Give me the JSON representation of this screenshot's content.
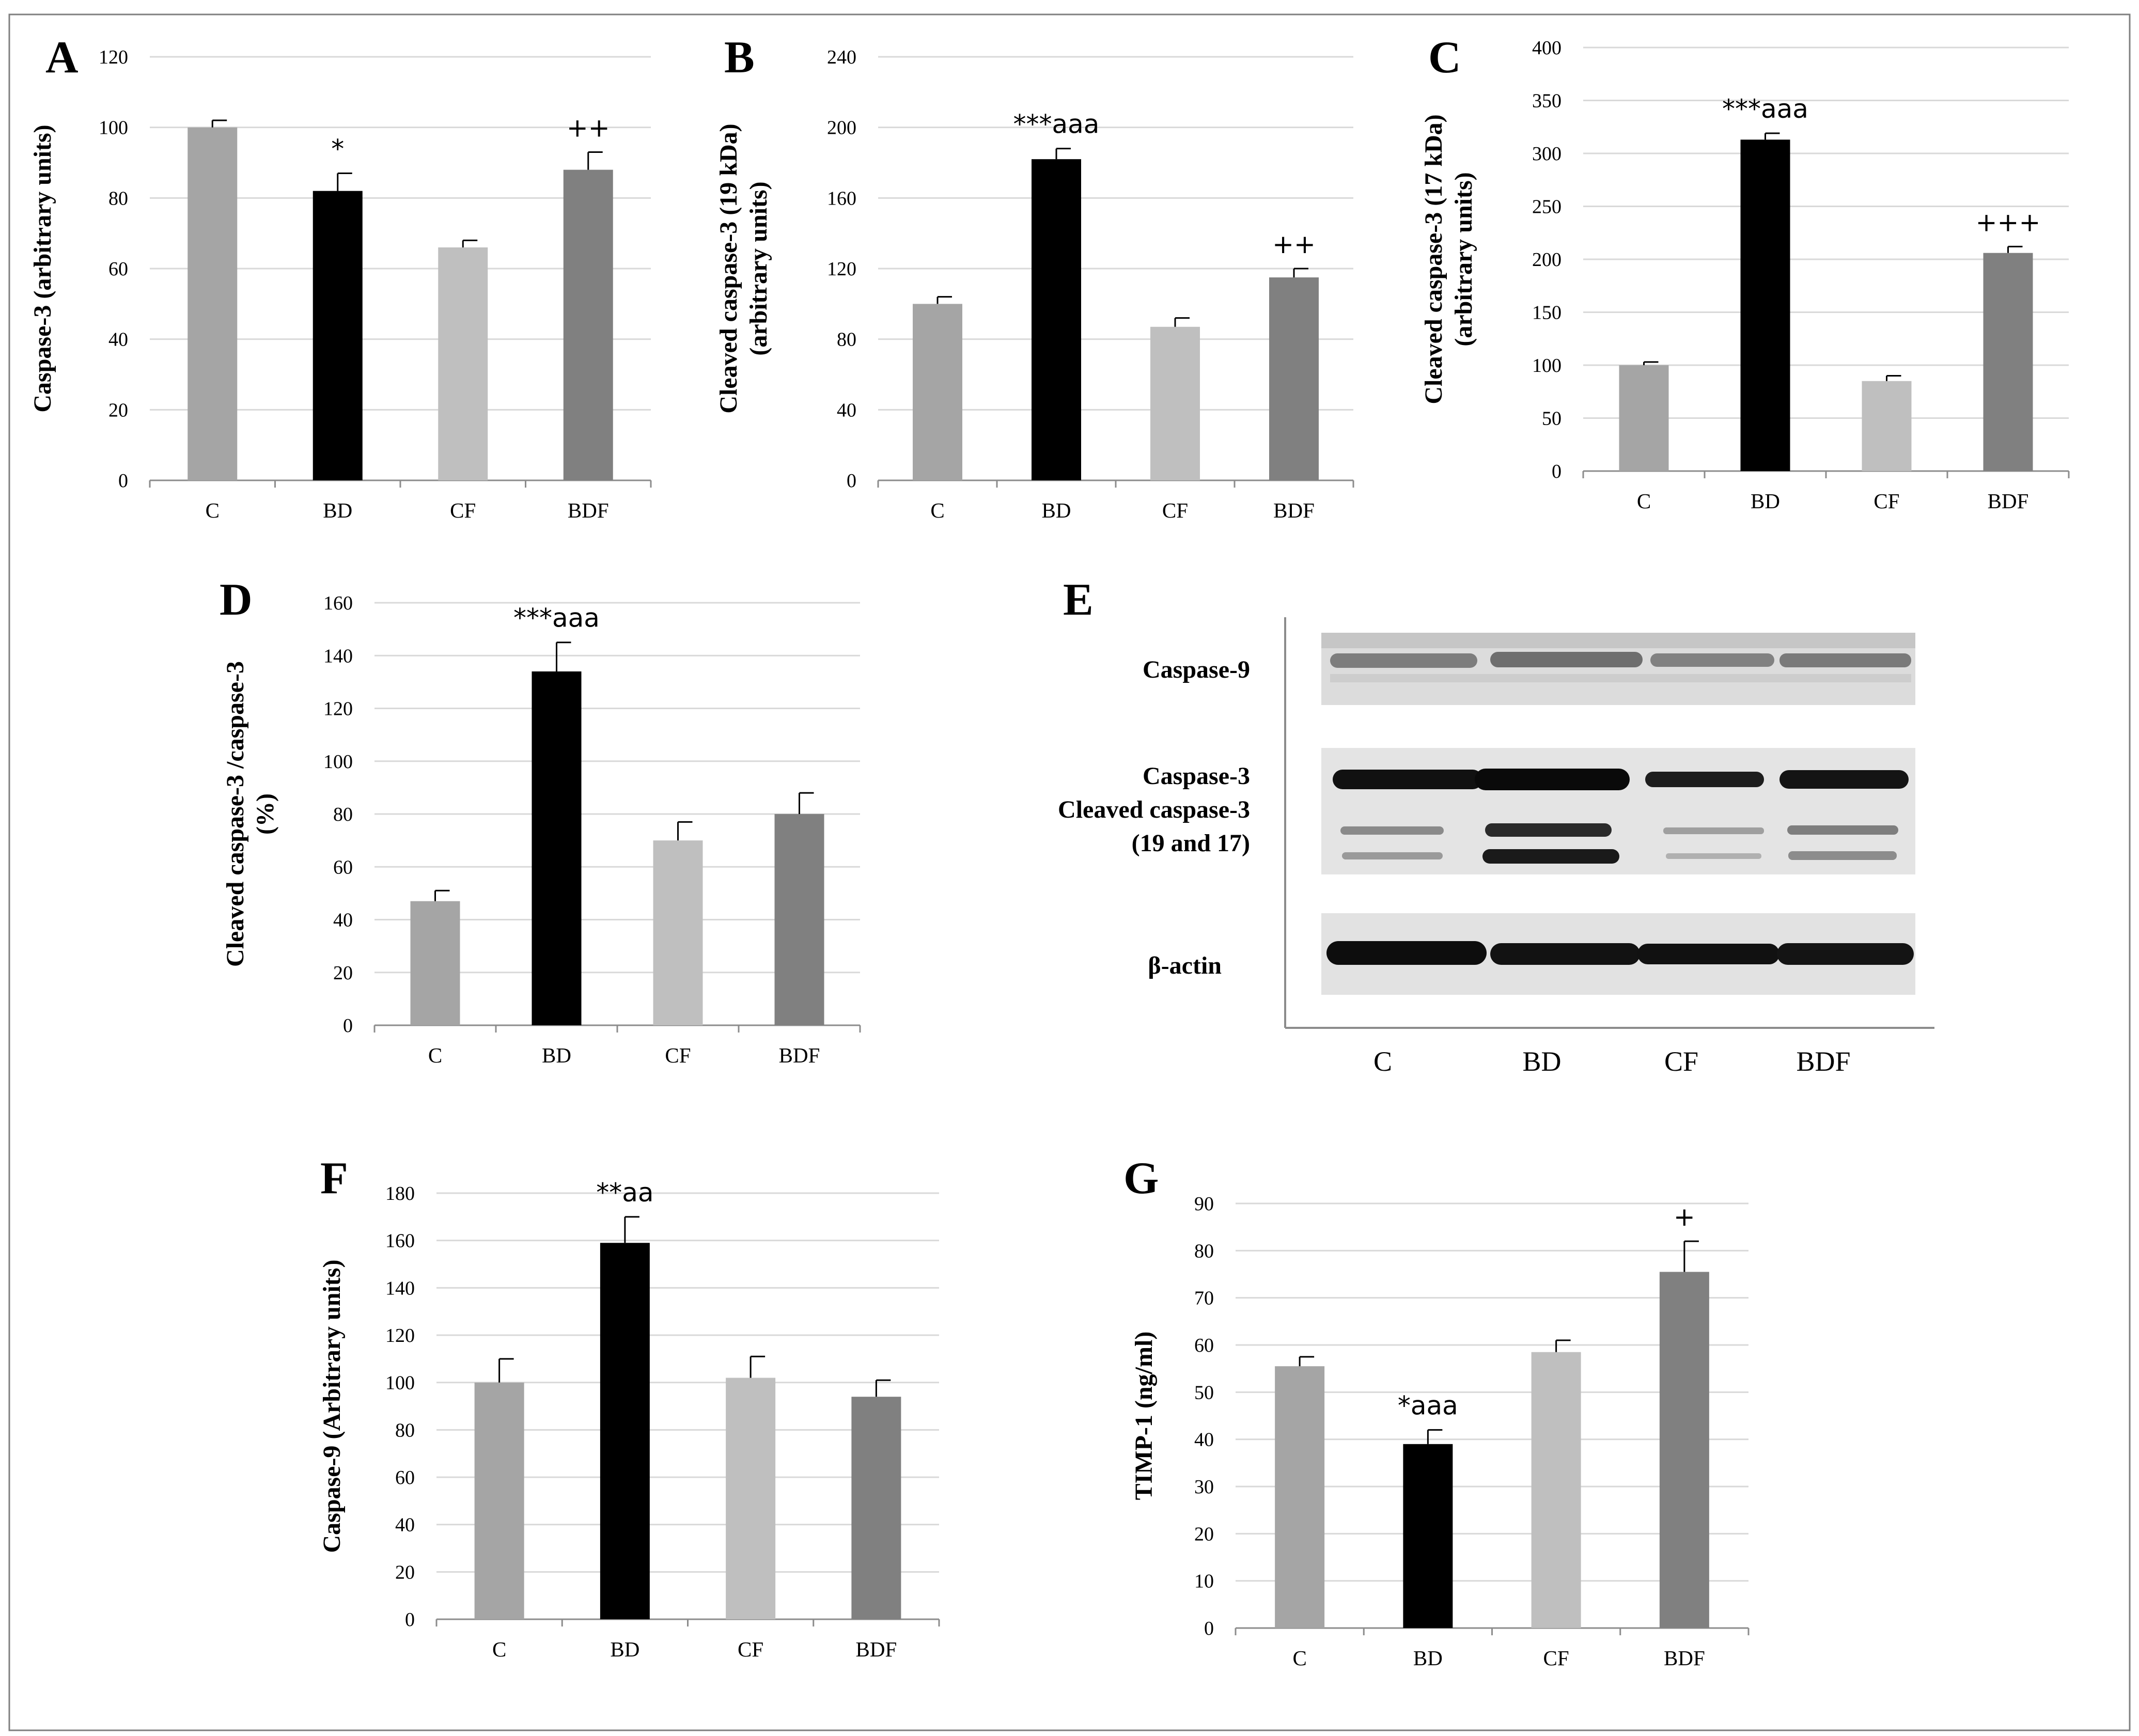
{
  "categories": [
    "C",
    "BD",
    "CF",
    "BDF"
  ],
  "colors": {
    "C": "#a5a5a5",
    "BD": "#000000",
    "CF": "#bfbfbf",
    "BDF": "#808080",
    "grid": "#d9d9d9",
    "axis": "#8c8c8c",
    "border": "#7f7f7f"
  },
  "chart_data": [
    {
      "id": "A",
      "type": "bar",
      "panel_label": "A",
      "ylabel_lines": [
        "Caspase-3 (arbitrary  units)"
      ],
      "ylim": [
        0,
        120
      ],
      "yticks": [
        0,
        20,
        40,
        60,
        80,
        100,
        120
      ],
      "categories": [
        "C",
        "BD",
        "CF",
        "BDF"
      ],
      "values": [
        100,
        82,
        66,
        88
      ],
      "errors": [
        2,
        5,
        2,
        5
      ],
      "annotations": [
        "",
        "*",
        "",
        "++"
      ]
    },
    {
      "id": "B",
      "type": "bar",
      "panel_label": "B",
      "ylabel_lines": [
        "Cleaved caspase-3 (19 kDa)",
        "(arbitrary  units)"
      ],
      "ylim": [
        0,
        240
      ],
      "yticks": [
        0,
        40,
        80,
        120,
        160,
        200,
        240
      ],
      "categories": [
        "C",
        "BD",
        "CF",
        "BDF"
      ],
      "values": [
        100,
        182,
        87,
        115
      ],
      "errors": [
        4,
        6,
        5,
        5
      ],
      "annotations": [
        "",
        "***aaa",
        "",
        "++"
      ]
    },
    {
      "id": "C",
      "type": "bar",
      "panel_label": "C",
      "ylabel_lines": [
        "Cleaved caspase-3 (17 kDa)",
        "(arbitrary  units)"
      ],
      "ylim": [
        0,
        400
      ],
      "yticks": [
        0,
        50,
        100,
        150,
        200,
        250,
        300,
        350,
        400
      ],
      "categories": [
        "C",
        "BD",
        "CF",
        "BDF"
      ],
      "values": [
        100,
        313,
        85,
        206
      ],
      "errors": [
        3,
        6,
        5,
        6
      ],
      "annotations": [
        "",
        "***aaa",
        "",
        "+++"
      ]
    },
    {
      "id": "D",
      "type": "bar",
      "panel_label": "D",
      "ylabel_lines": [
        "Cleaved caspase-3 /caspase-3",
        "(%)"
      ],
      "ylim": [
        0,
        160
      ],
      "yticks": [
        0,
        20,
        40,
        60,
        80,
        100,
        120,
        140,
        160
      ],
      "categories": [
        "C",
        "BD",
        "CF",
        "BDF"
      ],
      "values": [
        47,
        134,
        70,
        80
      ],
      "errors": [
        4,
        11,
        7,
        8
      ],
      "annotations": [
        "",
        "***aaa",
        "",
        ""
      ]
    },
    {
      "id": "F",
      "type": "bar",
      "panel_label": "F",
      "ylabel_lines": [
        "Caspase-9 (Arbitrary  units)"
      ],
      "ylim": [
        0,
        180
      ],
      "yticks": [
        0,
        20,
        40,
        60,
        80,
        100,
        120,
        140,
        160,
        180
      ],
      "categories": [
        "C",
        "BD",
        "CF",
        "BDF"
      ],
      "values": [
        100,
        159,
        102,
        94
      ],
      "errors": [
        10,
        11,
        9,
        7
      ],
      "annotations": [
        "",
        "**aa",
        "",
        ""
      ]
    },
    {
      "id": "G",
      "type": "bar",
      "panel_label": "G",
      "ylabel_lines": [
        "TIMP-1 (ng/ml)"
      ],
      "ylim": [
        0,
        90
      ],
      "yticks": [
        0,
        10,
        20,
        30,
        40,
        50,
        60,
        70,
        80,
        90
      ],
      "categories": [
        "C",
        "BD",
        "CF",
        "BDF"
      ],
      "values": [
        55.5,
        39,
        58.5,
        75.5
      ],
      "errors": [
        2,
        3,
        2.5,
        6.5
      ],
      "annotations": [
        "",
        "*aaa",
        "",
        "+"
      ]
    }
  ],
  "blot": {
    "panel_label": "E",
    "rows": [
      {
        "lines": [
          "Caspase-9"
        ]
      },
      {
        "lines": [
          "Caspase-3",
          "Cleaved caspase-3",
          "(19 and 17)"
        ]
      },
      {
        "lines": [
          "β-actin"
        ]
      }
    ],
    "lanes": [
      "C",
      "BD",
      "CF",
      "BDF"
    ]
  }
}
